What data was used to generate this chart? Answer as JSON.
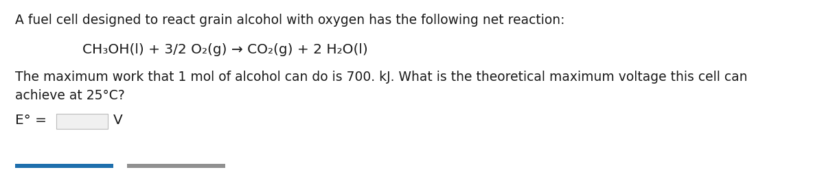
{
  "background_color": "#ffffff",
  "line1": "A fuel cell designed to react grain alcohol with oxygen has the following net reaction:",
  "equation": "CH₃OH(l) + 3/2 O₂(g) → CO₂(g) + 2 H₂O(l)",
  "line3a": "The maximum work that 1 mol of alcohol can do is 700. kJ. What is the theoretical maximum voltage this cell can",
  "line3b": "achieve at 25°C?",
  "answer_label": "E° =",
  "answer_unit": "V",
  "button1_color": "#1e6fad",
  "button2_color": "#909090",
  "text_color": "#1a1a1a",
  "font_size_main": 13.5,
  "font_size_equation": 14.5,
  "figsize": [
    12.0,
    2.48
  ],
  "dpi": 100
}
